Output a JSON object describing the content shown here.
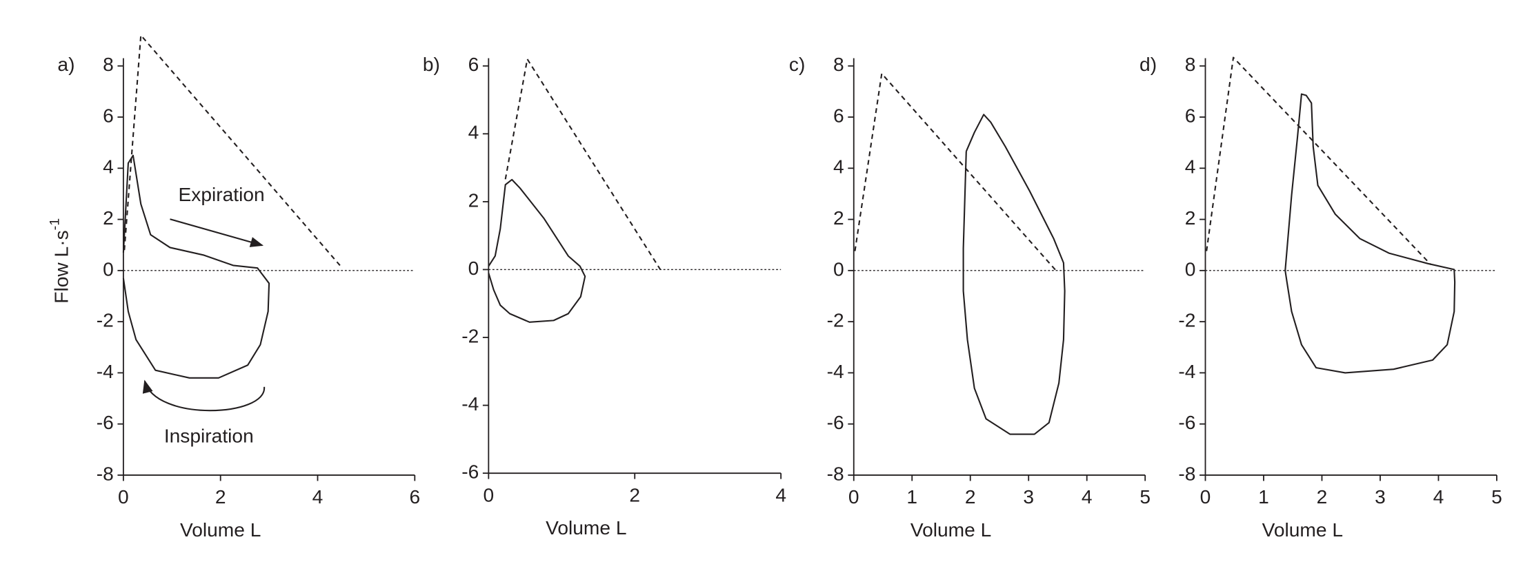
{
  "chart_data": [
    {
      "type": "line",
      "panel_label": "a)",
      "x_label": "Volume L",
      "y_label": "Flow L·s",
      "y_label_sup": "-1",
      "annotations": [
        "Expiration",
        "Inspiration"
      ],
      "xlim": [
        0,
        6
      ],
      "ylim": [
        -8,
        8
      ],
      "xticks": [
        0,
        2,
        4,
        6
      ],
      "yticks": [
        -8,
        -6,
        -4,
        -2,
        0,
        2,
        4,
        6,
        8
      ],
      "zero_line": true,
      "series": [
        {
          "style": "solid",
          "color": "#231f20",
          "x": [
            0,
            0.1,
            0.2,
            0.36,
            0.56,
            0.96,
            1.66,
            2.26,
            2.76,
            3.0,
            2.98,
            2.82,
            2.56,
            1.96,
            1.36,
            0.66,
            0.26,
            0.1,
            0
          ],
          "y": [
            0.7,
            4.2,
            4.5,
            2.6,
            1.4,
            0.9,
            0.6,
            0.2,
            0.1,
            -0.5,
            -1.6,
            -2.9,
            -3.7,
            -4.2,
            -4.2,
            -3.9,
            -2.7,
            -1.6,
            -0.3
          ]
        },
        {
          "style": "dashed",
          "color": "#231f20",
          "x": [
            0.02,
            0.36,
            4.46
          ],
          "y": [
            0.8,
            9.2,
            0.2
          ]
        }
      ]
    },
    {
      "type": "line",
      "panel_label": "b)",
      "x_label": "Volume L",
      "xlim": [
        0,
        4
      ],
      "ylim": [
        -6,
        6
      ],
      "xticks": [
        0,
        2,
        4
      ],
      "yticks": [
        -6,
        -4,
        -2,
        0,
        2,
        4,
        6
      ],
      "zero_line": true,
      "series": [
        {
          "style": "solid",
          "color": "#231f20",
          "x": [
            0,
            0.09,
            0.16,
            0.23,
            0.32,
            0.43,
            0.76,
            1.09,
            1.25,
            1.32,
            1.26,
            1.09,
            0.89,
            0.56,
            0.29,
            0.16,
            0.07,
            0
          ],
          "y": [
            0.1,
            0.4,
            1.2,
            2.5,
            2.65,
            2.4,
            1.5,
            0.4,
            0.1,
            -0.2,
            -0.8,
            -1.3,
            -1.5,
            -1.55,
            -1.3,
            -1.05,
            -0.6,
            -0.1
          ]
        },
        {
          "style": "dashed",
          "color": "#231f20",
          "x": [
            0.23,
            0.53,
            2.35
          ],
          "y": [
            2.66,
            6.2,
            0
          ]
        }
      ]
    },
    {
      "type": "line",
      "panel_label": "c)",
      "x_label": "Volume L",
      "xlim": [
        0,
        5
      ],
      "ylim": [
        -8,
        8
      ],
      "xticks": [
        0,
        1,
        2,
        3,
        4,
        5
      ],
      "yticks": [
        -8,
        -6,
        -4,
        -2,
        0,
        2,
        4,
        6,
        8
      ],
      "zero_line": true,
      "series": [
        {
          "style": "solid",
          "color": "#231f20",
          "x": [
            1.93,
            2.07,
            2.23,
            2.35,
            2.6,
            3.02,
            3.43,
            3.6,
            3.62,
            3.6,
            3.52,
            3.35,
            3.1,
            2.68,
            2.27,
            2.07,
            1.95,
            1.88,
            1.88,
            1.93
          ],
          "y": [
            4.66,
            5.4,
            6.1,
            5.8,
            4.85,
            3.1,
            1.25,
            0.3,
            -0.8,
            -2.7,
            -4.4,
            -5.95,
            -6.4,
            -6.4,
            -5.8,
            -4.6,
            -2.7,
            -0.8,
            0.87,
            4.66
          ]
        },
        {
          "style": "dashed",
          "color": "#231f20",
          "x": [
            0.02,
            0.48,
            3.47
          ],
          "y": [
            0.76,
            7.7,
            0
          ]
        }
      ]
    },
    {
      "type": "line",
      "panel_label": "d)",
      "x_label": "Volume L",
      "xlim": [
        0,
        5
      ],
      "ylim": [
        -8,
        8
      ],
      "xticks": [
        0,
        1,
        2,
        3,
        4,
        5
      ],
      "yticks": [
        -8,
        -6,
        -4,
        -2,
        0,
        2,
        4,
        6,
        8
      ],
      "zero_line": true,
      "series": [
        {
          "style": "solid",
          "color": "#231f20",
          "x": [
            1.37,
            1.48,
            1.58,
            1.65,
            1.73,
            1.82,
            1.85,
            1.93,
            2.23,
            2.65,
            3.15,
            3.82,
            4.27,
            4.28,
            4.27,
            4.15,
            3.9,
            3.23,
            2.4,
            1.9,
            1.65,
            1.48,
            1.4,
            1.37
          ],
          "y": [
            0,
            2.95,
            5.2,
            6.9,
            6.85,
            6.55,
            4.85,
            3.33,
            2.2,
            1.25,
            0.68,
            0.27,
            0.04,
            -0.45,
            -1.6,
            -2.9,
            -3.5,
            -3.86,
            -4.0,
            -3.8,
            -2.9,
            -1.6,
            -0.45,
            0
          ]
        },
        {
          "style": "dashed",
          "color": "#231f20",
          "x": [
            0.02,
            0.48,
            3.87
          ],
          "y": [
            0.76,
            8.33,
            0.23
          ]
        }
      ]
    }
  ]
}
